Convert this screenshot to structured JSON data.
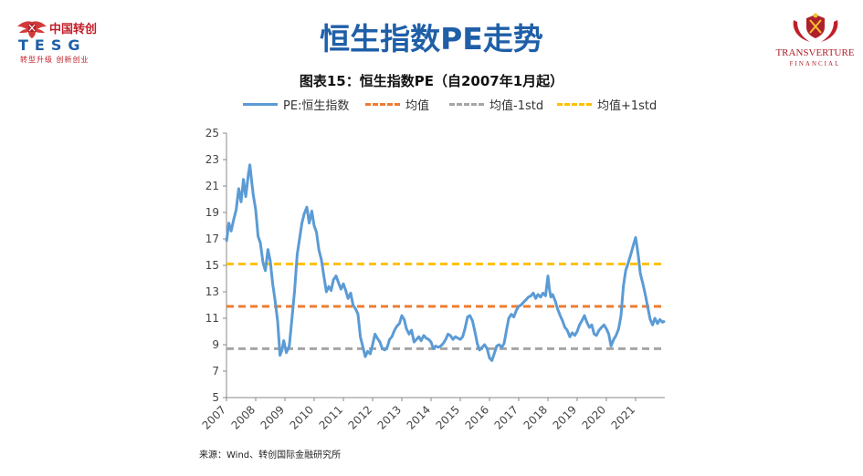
{
  "header": {
    "left_logo": {
      "cn": "中国转创",
      "en": "TESG",
      "slogan": "转型升级 创新创业"
    },
    "right_logo": {
      "name": "TRANSVERTURE",
      "sub": "FINANCIAL"
    },
    "title": "恒生指数PE走势"
  },
  "chart_data": {
    "type": "line",
    "title": "图表15：恒生指数PE（自2007年1月起）",
    "xlabel": "",
    "ylabel": "",
    "ylim": [
      5,
      25
    ],
    "xlim": [
      2007.0,
      2022.0
    ],
    "y_ticks": [
      "25",
      "23",
      "21",
      "19",
      "17",
      "15",
      "13",
      "11",
      "9",
      "7",
      "5"
    ],
    "x_ticks": [
      "2007",
      "2008",
      "2009",
      "2010",
      "2011",
      "2012",
      "2013",
      "2014",
      "2015",
      "2016",
      "2017",
      "2018",
      "2019",
      "2020",
      "2021"
    ],
    "grid": false,
    "legend_position": "top",
    "series": [
      {
        "name": "PE:恒生指数",
        "color": "#5b9bd5",
        "style": "solid",
        "points": [
          [
            2007.0,
            16.8
          ],
          [
            2007.08,
            18.2
          ],
          [
            2007.16,
            17.6
          ],
          [
            2007.25,
            18.5
          ],
          [
            2007.33,
            19.2
          ],
          [
            2007.42,
            20.8
          ],
          [
            2007.5,
            19.8
          ],
          [
            2007.58,
            21.5
          ],
          [
            2007.66,
            20.2
          ],
          [
            2007.75,
            21.9
          ],
          [
            2007.8,
            22.6
          ],
          [
            2007.86,
            21.4
          ],
          [
            2007.92,
            20.3
          ],
          [
            2008.0,
            19.2
          ],
          [
            2008.08,
            17.2
          ],
          [
            2008.16,
            16.7
          ],
          [
            2008.25,
            15.2
          ],
          [
            2008.33,
            14.6
          ],
          [
            2008.42,
            16.2
          ],
          [
            2008.5,
            15.3
          ],
          [
            2008.58,
            13.6
          ],
          [
            2008.66,
            12.4
          ],
          [
            2008.75,
            10.8
          ],
          [
            2008.83,
            8.2
          ],
          [
            2008.9,
            8.6
          ],
          [
            2008.96,
            9.3
          ],
          [
            2009.05,
            8.4
          ],
          [
            2009.15,
            8.9
          ],
          [
            2009.25,
            11.2
          ],
          [
            2009.33,
            13.1
          ],
          [
            2009.42,
            15.8
          ],
          [
            2009.5,
            17.0
          ],
          [
            2009.58,
            18.2
          ],
          [
            2009.66,
            18.9
          ],
          [
            2009.75,
            19.4
          ],
          [
            2009.83,
            18.2
          ],
          [
            2009.92,
            19.1
          ],
          [
            2010.0,
            18.0
          ],
          [
            2010.08,
            17.5
          ],
          [
            2010.16,
            16.2
          ],
          [
            2010.25,
            15.4
          ],
          [
            2010.33,
            14.2
          ],
          [
            2010.42,
            13.0
          ],
          [
            2010.5,
            13.4
          ],
          [
            2010.58,
            13.1
          ],
          [
            2010.66,
            13.9
          ],
          [
            2010.75,
            14.2
          ],
          [
            2010.83,
            13.7
          ],
          [
            2010.92,
            13.2
          ],
          [
            2011.0,
            13.6
          ],
          [
            2011.08,
            13.1
          ],
          [
            2011.16,
            12.5
          ],
          [
            2011.25,
            12.9
          ],
          [
            2011.33,
            12.0
          ],
          [
            2011.42,
            11.7
          ],
          [
            2011.5,
            11.3
          ],
          [
            2011.58,
            9.6
          ],
          [
            2011.66,
            8.9
          ],
          [
            2011.75,
            8.1
          ],
          [
            2011.83,
            8.5
          ],
          [
            2011.92,
            8.3
          ],
          [
            2012.0,
            9.0
          ],
          [
            2012.08,
            9.8
          ],
          [
            2012.16,
            9.5
          ],
          [
            2012.25,
            9.2
          ],
          [
            2012.33,
            8.7
          ],
          [
            2012.42,
            8.6
          ],
          [
            2012.5,
            8.8
          ],
          [
            2012.58,
            9.4
          ],
          [
            2012.66,
            9.6
          ],
          [
            2012.75,
            10.1
          ],
          [
            2012.83,
            10.4
          ],
          [
            2012.92,
            10.6
          ],
          [
            2013.0,
            11.2
          ],
          [
            2013.08,
            10.9
          ],
          [
            2013.16,
            10.2
          ],
          [
            2013.25,
            9.8
          ],
          [
            2013.33,
            10.1
          ],
          [
            2013.42,
            9.2
          ],
          [
            2013.5,
            9.4
          ],
          [
            2013.58,
            9.6
          ],
          [
            2013.66,
            9.3
          ],
          [
            2013.75,
            9.7
          ],
          [
            2013.83,
            9.5
          ],
          [
            2013.92,
            9.4
          ],
          [
            2014.0,
            9.2
          ],
          [
            2014.08,
            8.7
          ],
          [
            2014.16,
            8.9
          ],
          [
            2014.25,
            8.8
          ],
          [
            2014.33,
            8.9
          ],
          [
            2014.42,
            9.1
          ],
          [
            2014.5,
            9.4
          ],
          [
            2014.58,
            9.8
          ],
          [
            2014.66,
            9.7
          ],
          [
            2014.75,
            9.4
          ],
          [
            2014.83,
            9.6
          ],
          [
            2014.92,
            9.5
          ],
          [
            2015.0,
            9.4
          ],
          [
            2015.08,
            9.6
          ],
          [
            2015.16,
            10.2
          ],
          [
            2015.25,
            11.1
          ],
          [
            2015.33,
            11.2
          ],
          [
            2015.42,
            10.8
          ],
          [
            2015.5,
            10.0
          ],
          [
            2015.58,
            9.1
          ],
          [
            2015.66,
            8.6
          ],
          [
            2015.75,
            8.8
          ],
          [
            2015.83,
            9.0
          ],
          [
            2015.92,
            8.7
          ],
          [
            2016.0,
            8.0
          ],
          [
            2016.08,
            7.8
          ],
          [
            2016.16,
            8.3
          ],
          [
            2016.25,
            8.9
          ],
          [
            2016.33,
            9.0
          ],
          [
            2016.42,
            8.8
          ],
          [
            2016.5,
            9.1
          ],
          [
            2016.58,
            10.1
          ],
          [
            2016.66,
            11.0
          ],
          [
            2016.75,
            11.3
          ],
          [
            2016.83,
            11.1
          ],
          [
            2016.92,
            11.6
          ],
          [
            2017.0,
            11.9
          ],
          [
            2017.08,
            12.0
          ],
          [
            2017.16,
            12.2
          ],
          [
            2017.25,
            12.4
          ],
          [
            2017.33,
            12.6
          ],
          [
            2017.42,
            12.7
          ],
          [
            2017.5,
            12.9
          ],
          [
            2017.58,
            12.5
          ],
          [
            2017.66,
            12.8
          ],
          [
            2017.75,
            12.6
          ],
          [
            2017.83,
            12.9
          ],
          [
            2017.92,
            12.7
          ],
          [
            2018.0,
            14.2
          ],
          [
            2018.05,
            13.2
          ],
          [
            2018.1,
            12.6
          ],
          [
            2018.16,
            12.8
          ],
          [
            2018.25,
            12.3
          ],
          [
            2018.33,
            11.7
          ],
          [
            2018.42,
            11.2
          ],
          [
            2018.5,
            10.8
          ],
          [
            2018.58,
            10.3
          ],
          [
            2018.66,
            10.1
          ],
          [
            2018.75,
            9.6
          ],
          [
            2018.83,
            9.9
          ],
          [
            2018.92,
            9.7
          ],
          [
            2019.0,
            10.0
          ],
          [
            2019.08,
            10.5
          ],
          [
            2019.16,
            10.8
          ],
          [
            2019.25,
            11.2
          ],
          [
            2019.33,
            10.7
          ],
          [
            2019.42,
            10.3
          ],
          [
            2019.5,
            10.5
          ],
          [
            2019.58,
            9.8
          ],
          [
            2019.66,
            9.7
          ],
          [
            2019.75,
            10.1
          ],
          [
            2019.83,
            10.3
          ],
          [
            2019.92,
            10.5
          ],
          [
            2020.0,
            10.2
          ],
          [
            2020.08,
            9.8
          ],
          [
            2020.16,
            8.9
          ],
          [
            2020.25,
            9.4
          ],
          [
            2020.33,
            9.7
          ],
          [
            2020.42,
            10.2
          ],
          [
            2020.5,
            11.2
          ],
          [
            2020.58,
            13.4
          ],
          [
            2020.66,
            14.6
          ],
          [
            2020.75,
            15.2
          ],
          [
            2020.83,
            15.8
          ],
          [
            2020.92,
            16.5
          ],
          [
            2021.0,
            17.1
          ],
          [
            2021.05,
            16.4
          ],
          [
            2021.1,
            15.6
          ],
          [
            2021.16,
            14.4
          ],
          [
            2021.25,
            13.6
          ],
          [
            2021.33,
            12.8
          ],
          [
            2021.42,
            11.8
          ],
          [
            2021.5,
            10.9
          ],
          [
            2021.58,
            10.5
          ],
          [
            2021.66,
            11.0
          ],
          [
            2021.75,
            10.6
          ],
          [
            2021.83,
            10.9
          ],
          [
            2021.92,
            10.7
          ],
          [
            2022.0,
            10.8
          ]
        ]
      },
      {
        "name": "均值",
        "color": "#ed7d31",
        "style": "dashed",
        "value": 11.9
      },
      {
        "name": "均值-1std",
        "color": "#a5a5a5",
        "style": "dashed",
        "value": 8.7
      },
      {
        "name": "均值+1std",
        "color": "#ffc000",
        "style": "dashed",
        "value": 15.1
      }
    ]
  },
  "footer": {
    "source": "来源：Wind、转创国际金融研究所"
  }
}
